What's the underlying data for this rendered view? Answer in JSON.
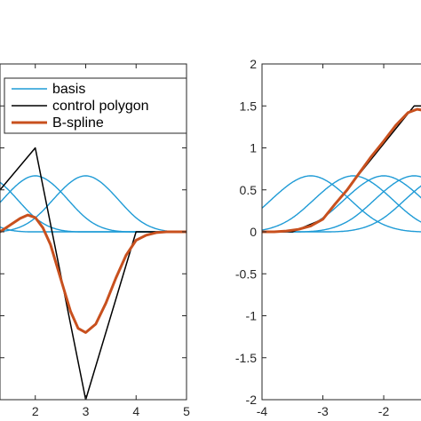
{
  "chart_data": [
    {
      "type": "line",
      "title": "",
      "xlabel": "",
      "ylabel": "",
      "xlim": [
        1.3,
        5
      ],
      "ylim": [
        -2,
        2
      ],
      "x_ticks": [
        2,
        3,
        4,
        5
      ],
      "x_tick_labels": [
        "2",
        "3",
        "4",
        "5"
      ],
      "y_ticks": [
        -2,
        -1.5,
        -1,
        -0.5,
        0,
        0.5,
        1,
        1.5,
        2
      ],
      "y_tick_labels": [
        "",
        "",
        "",
        "",
        "",
        "",
        "",
        "",
        ""
      ],
      "grid": false,
      "legend": {
        "position": "top-left",
        "entries": [
          {
            "label": "basis",
            "color": "#1f9bd6"
          },
          {
            "label": "control polygon",
            "color": "#000000"
          },
          {
            "label": "B-spline",
            "color": "#c8501e"
          }
        ]
      },
      "series": [
        {
          "name": "basis",
          "kind": "basis",
          "color": "#1f9bd6",
          "centers": [
            0,
            1,
            2,
            3
          ],
          "amplitude": 0.667,
          "x_range": [
            1.3,
            5
          ]
        },
        {
          "name": "control polygon",
          "color": "#000000",
          "x": [
            1.3,
            2,
            3,
            4,
            4.6,
            5
          ],
          "y": [
            0.5,
            1.0,
            -2.0,
            0.0,
            0.0,
            0.0
          ]
        },
        {
          "name": "B-spline",
          "color": "#c8501e",
          "x": [
            1.3,
            1.5,
            1.7,
            1.85,
            2.0,
            2.15,
            2.3,
            2.5,
            2.7,
            2.85,
            3.0,
            3.2,
            3.4,
            3.6,
            3.8,
            4.0,
            4.2,
            4.4,
            4.6,
            4.8,
            5.0
          ],
          "y": [
            0.0,
            0.08,
            0.16,
            0.2,
            0.17,
            0.05,
            -0.15,
            -0.55,
            -0.95,
            -1.15,
            -1.2,
            -1.1,
            -0.85,
            -0.55,
            -0.28,
            -0.1,
            -0.04,
            -0.01,
            0.0,
            0.0,
            0.0
          ]
        }
      ]
    },
    {
      "type": "line",
      "title": "",
      "xlabel": "",
      "ylabel": "",
      "xlim": [
        -4,
        -1.3
      ],
      "ylim": [
        -2,
        2
      ],
      "x_ticks": [
        -4,
        -3,
        -2
      ],
      "x_tick_labels": [
        "-4",
        "-3",
        "-2"
      ],
      "y_ticks": [
        -2,
        -1.5,
        -1,
        -0.5,
        0,
        0.5,
        1,
        1.5,
        2
      ],
      "y_tick_labels": [
        "-2",
        "-1.5",
        "-1",
        "-0.5",
        "0",
        "0.5",
        "1",
        "1.5",
        "2"
      ],
      "grid": false,
      "series": [
        {
          "name": "basis",
          "kind": "basis",
          "color": "#1f9bd6",
          "centers": [
            -3.2,
            -2.5,
            -2.0,
            -1.5,
            -1.0
          ],
          "amplitude": 0.667,
          "x_range": [
            -4,
            -1.3
          ]
        },
        {
          "name": "control polygon",
          "color": "#000000",
          "x": [
            -4,
            -3.5,
            -3.0,
            -2.5,
            -2.0,
            -1.5,
            -1.3
          ],
          "y": [
            0.0,
            0.0,
            0.15,
            0.6,
            1.05,
            1.5,
            1.5
          ]
        },
        {
          "name": "B-spline",
          "color": "#c8501e",
          "x": [
            -4,
            -3.8,
            -3.6,
            -3.4,
            -3.2,
            -3.0,
            -2.8,
            -2.6,
            -2.4,
            -2.2,
            -2.0,
            -1.8,
            -1.6,
            -1.45,
            -1.3
          ],
          "y": [
            0.0,
            0.0,
            0.01,
            0.03,
            0.07,
            0.15,
            0.33,
            0.5,
            0.7,
            0.9,
            1.08,
            1.27,
            1.42,
            1.46,
            1.44
          ]
        }
      ]
    }
  ]
}
